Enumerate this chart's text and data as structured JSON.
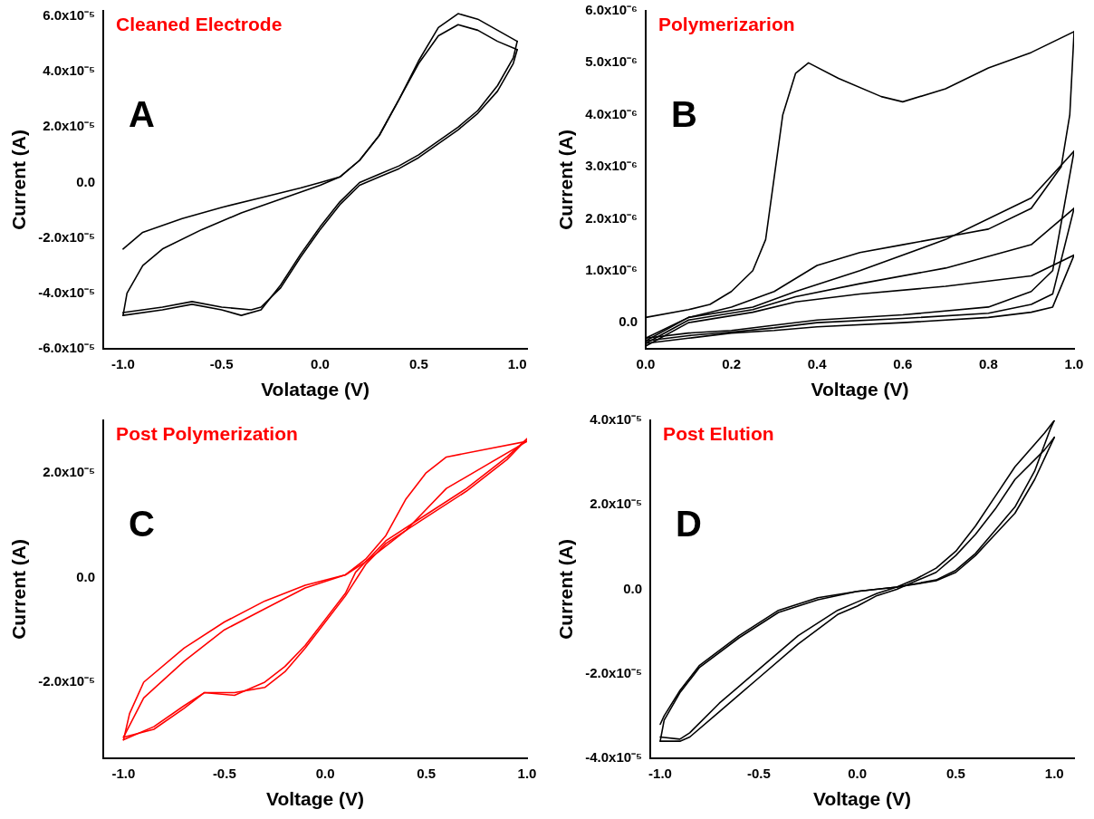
{
  "chart_data": [
    {
      "type": "line",
      "title": "Cleaned Electrode",
      "xlabel": "Volatage (V)",
      "ylabel": "Current (A)",
      "annotations": [
        "A"
      ],
      "legend": false,
      "grid": false,
      "marker": "none",
      "line_style": "solid",
      "xlim": [
        -1.1,
        1.05
      ],
      "ylim": [
        -6e-05,
        6.2e-05
      ],
      "xticks": [
        {
          "value": -1,
          "label": "-1.0"
        },
        {
          "value": -0.5,
          "label": "-0.5"
        },
        {
          "value": 0,
          "label": "0.0"
        },
        {
          "value": 0.5,
          "label": "0.5"
        },
        {
          "value": 1,
          "label": "1.0"
        }
      ],
      "yticks": [
        {
          "value": -6e-05,
          "label": "-6.0x10⁻⁵"
        },
        {
          "value": -4e-05,
          "label": "-4.0x10⁻⁵"
        },
        {
          "value": -2e-05,
          "label": "-2.0x10⁻⁵"
        },
        {
          "value": 0,
          "label": "0.0"
        },
        {
          "value": 2e-05,
          "label": "2.0x10⁻⁵"
        },
        {
          "value": 4e-05,
          "label": "4.0x10⁻⁵"
        },
        {
          "value": 6e-05,
          "label": "6.0x10⁻⁵"
        }
      ],
      "series": [
        {
          "color": "#000000",
          "x": [
            -1,
            -0.9,
            -0.7,
            -0.5,
            -0.3,
            -0.1,
            0,
            0.1,
            0.2,
            0.3,
            0.4,
            0.5,
            0.6,
            0.7,
            0.8,
            0.9,
            1
          ],
          "values": [
            -2.4e-05,
            -1.8e-05,
            -1.3e-05,
            -9e-06,
            -5.5e-06,
            -2e-06,
            0,
            2e-06,
            8e-06,
            1.7e-05,
            3e-05,
            4.4e-05,
            5.6e-05,
            6.1e-05,
            5.9e-05,
            5.5e-05,
            5.1e-05
          ]
        },
        {
          "color": "#000000",
          "x": [
            1,
            0.98,
            0.9,
            0.8,
            0.7,
            0.6,
            0.5,
            0.4,
            0.3,
            0.2,
            0.1,
            0,
            -0.1,
            -0.2,
            -0.3,
            -0.4,
            -0.5,
            -0.65,
            -0.8,
            -1
          ],
          "values": [
            5.1e-05,
            4.5e-05,
            3.5e-05,
            2.6e-05,
            2e-05,
            1.5e-05,
            1e-05,
            6e-06,
            3e-06,
            0,
            -7e-06,
            -1.6e-05,
            -2.6e-05,
            -3.7e-05,
            -4.6e-05,
            -4.8e-05,
            -4.6e-05,
            -4.4e-05,
            -4.6e-05,
            -4.8e-05
          ]
        },
        {
          "color": "#000000",
          "x": [
            -1,
            -0.98,
            -0.9,
            -0.8,
            -0.6,
            -0.4,
            -0.2,
            0,
            0.1,
            0.2,
            0.3,
            0.4,
            0.5,
            0.6,
            0.7,
            0.8,
            0.9,
            1
          ],
          "values": [
            -4.8e-05,
            -4e-05,
            -3e-05,
            -2.4e-05,
            -1.7e-05,
            -1.1e-05,
            -6e-06,
            -1e-06,
            2e-06,
            8e-06,
            1.7e-05,
            3e-05,
            4.3e-05,
            5.3e-05,
            5.7e-05,
            5.5e-05,
            5.1e-05,
            4.8e-05
          ]
        },
        {
          "color": "#000000",
          "x": [
            1,
            0.98,
            0.9,
            0.8,
            0.7,
            0.6,
            0.5,
            0.4,
            0.3,
            0.2,
            0.1,
            0,
            -0.1,
            -0.2,
            -0.3,
            -0.35,
            -0.5,
            -0.65,
            -0.8,
            -1
          ],
          "values": [
            4.8e-05,
            4.3e-05,
            3.3e-05,
            2.5e-05,
            1.9e-05,
            1.4e-05,
            9e-06,
            5e-06,
            2e-06,
            -1e-06,
            -8e-06,
            -1.7e-05,
            -2.7e-05,
            -3.8e-05,
            -4.5e-05,
            -4.6e-05,
            -4.5e-05,
            -4.3e-05,
            -4.5e-05,
            -4.7e-05
          ]
        }
      ]
    },
    {
      "type": "line",
      "title": "Polymerizarion",
      "xlabel": "Voltage (V)",
      "ylabel": "Current (A)",
      "annotations": [
        "B"
      ],
      "legend": false,
      "grid": false,
      "marker": "none",
      "line_style": "solid",
      "xlim": [
        0,
        1
      ],
      "ylim": [
        -5e-07,
        6e-06
      ],
      "xticks": [
        {
          "value": 0,
          "label": "0.0"
        },
        {
          "value": 0.2,
          "label": "0.2"
        },
        {
          "value": 0.4,
          "label": "0.4"
        },
        {
          "value": 0.6,
          "label": "0.6"
        },
        {
          "value": 0.8,
          "label": "0.8"
        },
        {
          "value": 1,
          "label": "1.0"
        }
      ],
      "yticks": [
        {
          "value": 0,
          "label": "0.0"
        },
        {
          "value": 1e-06,
          "label": "1.0x10⁻⁶"
        },
        {
          "value": 2e-06,
          "label": "2.0x10⁻⁶"
        },
        {
          "value": 3e-06,
          "label": "3.0x10⁻⁶"
        },
        {
          "value": 4e-06,
          "label": "4.0x10⁻⁶"
        },
        {
          "value": 5e-06,
          "label": "5.0x10⁻⁶"
        },
        {
          "value": 6e-06,
          "label": "6.0x10⁻⁶"
        }
      ],
      "series": [
        {
          "color": "#000000",
          "x": [
            0,
            0.1,
            0.15,
            0.2,
            0.25,
            0.28,
            0.3,
            0.32,
            0.35,
            0.38,
            0.45,
            0.55,
            0.6,
            0.7,
            0.8,
            0.9,
            1
          ],
          "values": [
            1e-07,
            2.5e-07,
            3.5e-07,
            6e-07,
            1e-06,
            1.6e-06,
            2.8e-06,
            4e-06,
            4.8e-06,
            5e-06,
            4.7e-06,
            4.35e-06,
            4.25e-06,
            4.5e-06,
            4.9e-06,
            5.2e-06,
            5.6e-06
          ]
        },
        {
          "color": "#000000",
          "x": [
            1,
            0.99,
            0.97,
            0.9,
            0.8,
            0.6,
            0.5,
            0.4,
            0.3,
            0.2,
            0.1,
            0
          ],
          "values": [
            5.6e-06,
            4e-06,
            3e-06,
            2.2e-06,
            1.8e-06,
            1.5e-06,
            1.35e-06,
            1.1e-06,
            6e-07,
            3e-07,
            1e-07,
            -3e-07
          ]
        },
        {
          "color": "#000000",
          "x": [
            0,
            0.1,
            0.2,
            0.3,
            0.4,
            0.6,
            0.8,
            0.9,
            0.95,
            1
          ],
          "values": [
            -3e-07,
            -2e-07,
            -1.5e-07,
            -5e-08,
            5e-08,
            1.5e-07,
            3e-07,
            6e-07,
            1e-06,
            3.3e-06
          ]
        },
        {
          "color": "#000000",
          "x": [
            1,
            0.9,
            0.7,
            0.5,
            0.35,
            0.25,
            0.1,
            0
          ],
          "values": [
            3.3e-06,
            2.4e-06,
            1.6e-06,
            1e-06,
            6e-07,
            3e-07,
            1e-07,
            -3.5e-07
          ]
        },
        {
          "color": "#000000",
          "x": [
            0,
            0.1,
            0.2,
            0.3,
            0.4,
            0.6,
            0.8,
            0.9,
            0.95,
            1
          ],
          "values": [
            -3.5e-07,
            -2.5e-07,
            -1.8e-07,
            -1e-07,
            0,
            8e-08,
            1.8e-07,
            3.5e-07,
            5.5e-07,
            2.2e-06
          ]
        },
        {
          "color": "#000000",
          "x": [
            1,
            0.9,
            0.7,
            0.5,
            0.35,
            0.25,
            0.1,
            0
          ],
          "values": [
            2.2e-06,
            1.5e-06,
            1.05e-06,
            7.5e-07,
            5e-07,
            2.5e-07,
            5e-08,
            -4e-07
          ]
        },
        {
          "color": "#000000",
          "x": [
            0,
            0.1,
            0.2,
            0.3,
            0.4,
            0.6,
            0.8,
            0.9,
            0.95,
            1
          ],
          "values": [
            -4e-07,
            -3e-07,
            -2e-07,
            -1.5e-07,
            -8e-08,
            0,
            1e-07,
            2e-07,
            3e-07,
            1.3e-06
          ]
        },
        {
          "color": "#000000",
          "x": [
            1,
            0.9,
            0.7,
            0.5,
            0.35,
            0.25,
            0.1,
            0
          ],
          "values": [
            1.3e-06,
            9e-07,
            7e-07,
            5.5e-07,
            4e-07,
            2e-07,
            0,
            -4.5e-07
          ]
        }
      ]
    },
    {
      "type": "line",
      "title": "Post Polymerization",
      "xlabel": "Voltage (V)",
      "ylabel": "Current (A)",
      "annotations": [
        "C"
      ],
      "legend": false,
      "grid": false,
      "marker": "none",
      "line_style": "solid",
      "xlim": [
        -1.1,
        1
      ],
      "ylim": [
        -3.45e-05,
        3e-05
      ],
      "xticks": [
        {
          "value": -1,
          "label": "-1.0"
        },
        {
          "value": -0.5,
          "label": "-0.5"
        },
        {
          "value": 0,
          "label": "0.0"
        },
        {
          "value": 0.5,
          "label": "0.5"
        },
        {
          "value": 1,
          "label": "1.0"
        }
      ],
      "yticks": [
        {
          "value": -2e-05,
          "label": "-2.0x10⁻⁵"
        },
        {
          "value": 0,
          "label": "0.0"
        },
        {
          "value": 2e-05,
          "label": "2.0x10⁻⁵"
        }
      ],
      "series": [
        {
          "color": "#ff0000",
          "x": [
            1,
            0.9,
            0.7,
            0.5,
            0.3,
            0.2,
            0.15,
            0.1,
            0,
            -0.1,
            -0.2,
            -0.3,
            -0.45,
            -0.6,
            -0.7,
            -0.85,
            -1
          ],
          "values": [
            2.65e-05,
            2.3e-05,
            1.7e-05,
            1.2e-05,
            7e-06,
            3e-06,
            1e-06,
            -3e-06,
            -8e-06,
            -1.3e-05,
            -1.7e-05,
            -2e-05,
            -2.25e-05,
            -2.2e-05,
            -2.45e-05,
            -2.85e-05,
            -3.1e-05
          ]
        },
        {
          "color": "#ff0000",
          "x": [
            -1,
            -0.97,
            -0.9,
            -0.7,
            -0.5,
            -0.3,
            -0.1,
            0.1,
            0.2,
            0.3,
            0.4,
            0.5,
            0.6,
            0.8,
            1
          ],
          "values": [
            -3.1e-05,
            -2.6e-05,
            -2e-05,
            -1.35e-05,
            -8.5e-06,
            -4.5e-06,
            -1.5e-06,
            5e-07,
            3.5e-06,
            8e-06,
            1.5e-05,
            2e-05,
            2.3e-05,
            2.45e-05,
            2.6e-05
          ]
        },
        {
          "color": "#ff0000",
          "x": [
            1,
            0.9,
            0.7,
            0.5,
            0.3,
            0.2,
            0.1,
            0,
            -0.1,
            -0.2,
            -0.3,
            -0.45,
            -0.6,
            -0.7,
            -0.85,
            -1
          ],
          "values": [
            2.65e-05,
            2.25e-05,
            1.65e-05,
            1.15e-05,
            6.5e-06,
            2.5e-06,
            -3.5e-06,
            -8.5e-06,
            -1.35e-05,
            -1.8e-05,
            -2.1e-05,
            -2.2e-05,
            -2.2e-05,
            -2.5e-05,
            -2.9e-05,
            -3.05e-05
          ]
        },
        {
          "color": "#ff0000",
          "x": [
            -1,
            -0.9,
            -0.7,
            -0.5,
            -0.3,
            -0.1,
            0.1,
            0.2,
            0.4,
            0.5,
            0.6,
            0.8,
            1
          ],
          "values": [
            -3.05e-05,
            -2.3e-05,
            -1.6e-05,
            -1e-05,
            -6e-06,
            -2e-06,
            5e-07,
            3e-06,
            9e-06,
            1.3e-05,
            1.7e-05,
            2.15e-05,
            2.6e-05
          ]
        }
      ]
    },
    {
      "type": "line",
      "title": "Post Elution",
      "xlabel": "Voltage (V)",
      "ylabel": "Current (A)",
      "annotations": [
        "D"
      ],
      "legend": false,
      "grid": false,
      "marker": "none",
      "line_style": "solid",
      "xlim": [
        -1.05,
        1.1
      ],
      "ylim": [
        -4e-05,
        4e-05
      ],
      "xticks": [
        {
          "value": -1,
          "label": "-1.0"
        },
        {
          "value": -0.5,
          "label": "-0.5"
        },
        {
          "value": 0,
          "label": "0.0"
        },
        {
          "value": 0.5,
          "label": "0.5"
        },
        {
          "value": 1,
          "label": "1.0"
        }
      ],
      "yticks": [
        {
          "value": -4e-05,
          "label": "-4.0x10⁻⁵"
        },
        {
          "value": -2e-05,
          "label": "-2.0x10⁻⁵"
        },
        {
          "value": 0,
          "label": "0.0"
        },
        {
          "value": 2e-05,
          "label": "2.0x10⁻⁵"
        },
        {
          "value": 4e-05,
          "label": "4.0x10⁻⁵"
        }
      ],
      "series": [
        {
          "color": "#000000",
          "x": [
            -1,
            -0.98,
            -0.9,
            -0.8,
            -0.6,
            -0.4,
            -0.2,
            0,
            0.2,
            0.4,
            0.5,
            0.6,
            0.7,
            0.8,
            0.9,
            0.98,
            1
          ],
          "values": [
            -3.2e-05,
            -3e-05,
            -2.4e-05,
            -1.8e-05,
            -1.1e-05,
            -5e-06,
            -2e-06,
            -5e-07,
            5e-07,
            2e-06,
            4e-06,
            8e-06,
            1.3e-05,
            1.8e-05,
            2.6e-05,
            3.4e-05,
            3.6e-05
          ]
        },
        {
          "color": "#000000",
          "x": [
            1,
            0.95,
            0.8,
            0.7,
            0.6,
            0.5,
            0.4,
            0.3,
            0.2,
            0.1,
            0,
            -0.1,
            -0.3,
            -0.5,
            -0.7,
            -0.85,
            -0.9,
            -1
          ],
          "values": [
            3.6e-05,
            3.3e-05,
            2.6e-05,
            1.9e-05,
            1.3e-05,
            8e-06,
            4e-06,
            2e-06,
            0,
            -1.5e-06,
            -4e-06,
            -6e-06,
            -1.3e-05,
            -2.1e-05,
            -2.9e-05,
            -3.5e-05,
            -3.6e-05,
            -3.6e-05
          ]
        },
        {
          "color": "#000000",
          "x": [
            -1,
            -0.98,
            -0.9,
            -0.8,
            -0.6,
            -0.4,
            -0.2,
            0,
            0.2,
            0.4,
            0.5,
            0.6,
            0.7,
            0.8,
            0.9,
            0.98,
            1
          ],
          "values": [
            -3.6e-05,
            -3.1e-05,
            -2.45e-05,
            -1.85e-05,
            -1.15e-05,
            -5.5e-06,
            -2.5e-06,
            -5e-07,
            5e-07,
            2.2e-06,
            4.5e-06,
            8.5e-06,
            1.4e-05,
            1.95e-05,
            2.8e-05,
            3.8e-05,
            4e-05
          ]
        },
        {
          "color": "#000000",
          "x": [
            1,
            0.95,
            0.8,
            0.7,
            0.6,
            0.5,
            0.4,
            0.3,
            0.2,
            0.1,
            0,
            -0.1,
            -0.3,
            -0.5,
            -0.7,
            -0.85,
            -0.9,
            -1
          ],
          "values": [
            4e-05,
            3.7e-05,
            2.9e-05,
            2.2e-05,
            1.5e-05,
            9e-06,
            5e-06,
            2.5e-06,
            5e-07,
            -1e-06,
            -3e-06,
            -5e-06,
            -1.1e-05,
            -1.9e-05,
            -2.7e-05,
            -3.4e-05,
            -3.55e-05,
            -3.5e-05
          ]
        }
      ]
    }
  ]
}
